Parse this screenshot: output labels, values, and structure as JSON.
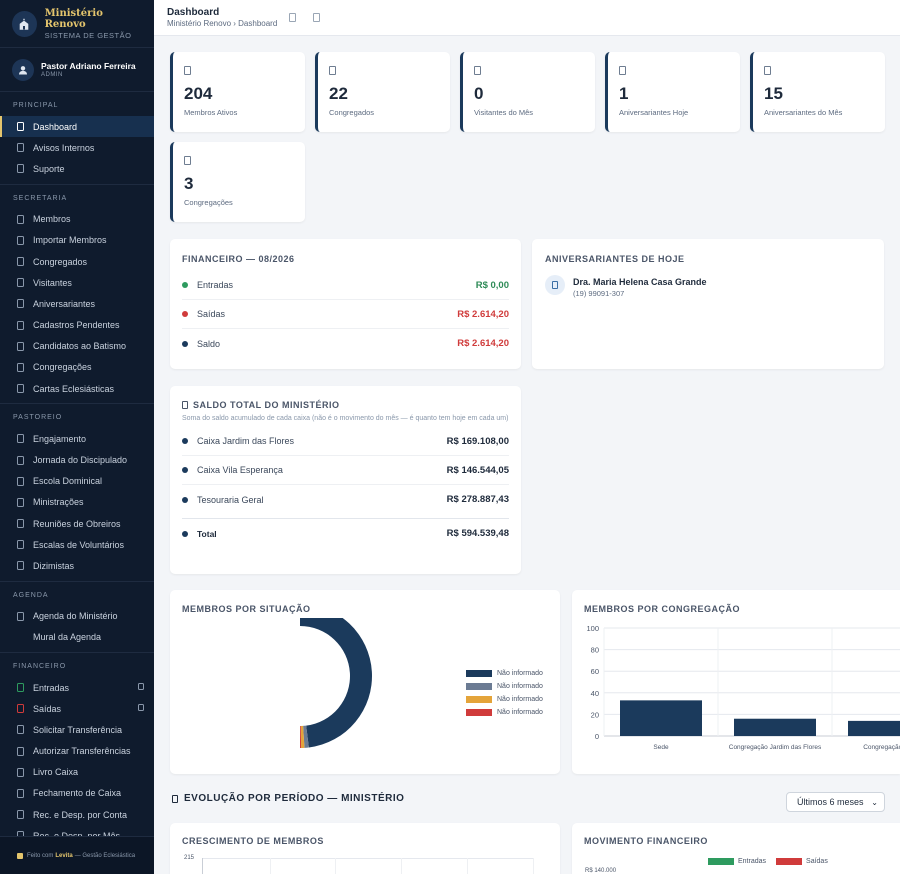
{
  "brand": {
    "name": "Ministério Renovo",
    "subtitle": "SISTEMA DE GESTÃO"
  },
  "user": {
    "name": "Pastor Adriano Ferreira",
    "role": "ADMIN"
  },
  "sidebar": {
    "sections": [
      {
        "title": "PRINCIPAL",
        "items": [
          {
            "label": "Dashboard",
            "active": true
          },
          {
            "label": "Avisos Internos"
          },
          {
            "label": "Suporte"
          }
        ]
      },
      {
        "title": "SECRETARIA",
        "items": [
          {
            "label": "Membros"
          },
          {
            "label": "Importar Membros"
          },
          {
            "label": "Congregados"
          },
          {
            "label": "Visitantes"
          },
          {
            "label": "Aniversariantes"
          },
          {
            "label": "Cadastros Pendentes"
          },
          {
            "label": "Candidatos ao Batismo"
          },
          {
            "label": "Congregações"
          },
          {
            "label": "Cartas Eclesiásticas"
          }
        ]
      },
      {
        "title": "PASTOREIO",
        "items": [
          {
            "label": "Engajamento"
          },
          {
            "label": "Jornada do Discipulado"
          },
          {
            "label": "Escola Dominical"
          },
          {
            "label": "Ministrações"
          },
          {
            "label": "Reuniões de Obreiros"
          },
          {
            "label": "Escalas de Voluntários"
          },
          {
            "label": "Dizimistas"
          }
        ]
      },
      {
        "title": "AGENDA",
        "items": [
          {
            "label": "Agenda do Ministério"
          },
          {
            "label": "Mural da Agenda",
            "noicon": true
          }
        ]
      },
      {
        "title": "FINANCEIRO",
        "items": [
          {
            "label": "Entradas",
            "color": "#2e9b5f",
            "chev": true
          },
          {
            "label": "Saídas",
            "color": "#d03b3b",
            "chev": true
          },
          {
            "label": "Solicitar Transferência"
          },
          {
            "label": "Autorizar Transferências"
          },
          {
            "label": "Livro Caixa"
          },
          {
            "label": "Fechamento de Caixa"
          },
          {
            "label": "Rec. e Desp. por Conta"
          },
          {
            "label": "Rec. e Desp. por Mês"
          }
        ]
      }
    ],
    "footer": {
      "prefix": "Feito com",
      "brand": "Levita",
      "suffix": "— Gestão Eclesiástica"
    }
  },
  "topbar": {
    "title": "Dashboard",
    "breadcrumb": "Ministério Renovo › Dashboard"
  },
  "stats": [
    {
      "value": "204",
      "label": "Membros Ativos"
    },
    {
      "value": "22",
      "label": "Congregados"
    },
    {
      "value": "0",
      "label": "Visitantes do Mês"
    },
    {
      "value": "1",
      "label": "Aniversariantes Hoje"
    },
    {
      "value": "15",
      "label": "Aniversariantes do Mês"
    },
    {
      "value": "3",
      "label": "Congregações"
    }
  ],
  "financeiro": {
    "title": "FINANCEIRO — 08/2026",
    "rows": [
      {
        "label": "Entradas",
        "value": "R$ 0,00",
        "color": "#2e9b5f",
        "tone": "pos"
      },
      {
        "label": "Saídas",
        "value": "R$ 2.614,20",
        "color": "#d03b3b",
        "tone": "neg"
      },
      {
        "label": "Saldo",
        "value": "R$ 2.614,20",
        "color": "#1b3a5c",
        "tone": "neg"
      }
    ]
  },
  "aniversariantes": {
    "title": "ANIVERSARIANTES DE HOJE",
    "name": "Dra. Maria Helena Casa Grande",
    "phone": "(19) 99091-307"
  },
  "saldo": {
    "title": "SALDO TOTAL DO MINISTÉRIO",
    "subtitle": "Soma do saldo acumulado de cada caixa (não é o movimento do mês — é quanto tem hoje em cada um)",
    "rows": [
      {
        "label": "Caixa Jardim das Flores",
        "value": "R$ 169.108,00"
      },
      {
        "label": "Caixa Vila Esperança",
        "value": "R$ 146.544,05"
      },
      {
        "label": "Tesouraria Geral",
        "value": "R$ 278.887,43"
      }
    ],
    "total_label": "Total",
    "total_value": "R$ 594.539,48"
  },
  "situacao": {
    "title": "MEMBROS POR SITUAÇÃO",
    "chart_data": {
      "type": "pie",
      "legend": "right",
      "slices": [
        {
          "label": "Não informado",
          "value": 196,
          "color": "#1b3a5c"
        },
        {
          "label": "Não informado",
          "value": 4,
          "color": "#6b7b93"
        },
        {
          "label": "Não informado",
          "value": 3,
          "color": "#e4a43a"
        },
        {
          "label": "Não informado",
          "value": 1,
          "color": "#d03b3b"
        }
      ]
    }
  },
  "congregacao": {
    "title": "MEMBROS POR CONGREGAÇÃO",
    "chart_data": {
      "type": "bar",
      "categories": [
        "Sede",
        "Congregação Jardim das Flores",
        "Congregação Vila"
      ],
      "values": [
        33,
        16,
        14
      ],
      "ylim": [
        0,
        100
      ],
      "yticks": [
        0,
        20,
        40,
        60,
        80,
        100
      ],
      "color": "#1b3a5c",
      "grid": true
    }
  },
  "evolucao": {
    "title": "EVOLUÇÃO POR PERÍODO — MINISTÉRIO",
    "period": "Últimos 6 meses"
  },
  "crescimento": {
    "title": "CRESCIMENTO DE MEMBROS",
    "ytick_top": "215"
  },
  "movimento": {
    "title": "MOVIMENTO FINANCEIRO",
    "legend": [
      {
        "label": "Entradas",
        "color": "#2e9b5f"
      },
      {
        "label": "Saídas",
        "color": "#d03b3b"
      }
    ],
    "ytick_top": "R$ 140.000"
  }
}
